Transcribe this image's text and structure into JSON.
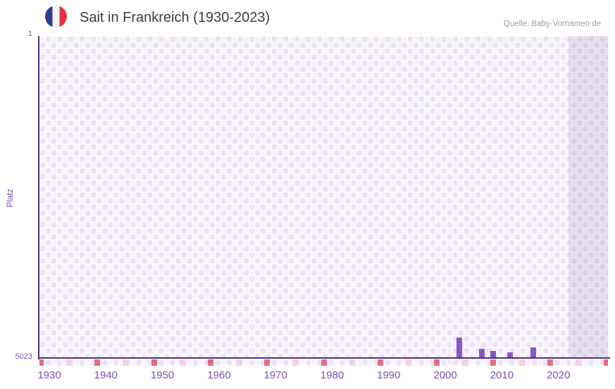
{
  "header": {
    "title": "Sait in Frankreich (1930-2023)",
    "source": "Quelle: Baby-Vornamen.de",
    "flag_icon": "french-flag-icon"
  },
  "y_axis": {
    "label": "Platz",
    "top_tick": "1",
    "bottom_tick": "5023"
  },
  "chart_data": {
    "type": "bar",
    "title": "Sait in Frankreich (1930-2023)",
    "ylabel": "Platz",
    "xlabel": "",
    "y_rank_min": 1,
    "y_rank_max": 5023,
    "y_inverted": true,
    "grid": "checkered",
    "xlim": [
      1929.75,
      2030.25
    ],
    "x_tick_years": [
      1930,
      1940,
      1950,
      1960,
      1970,
      1980,
      1990,
      2000,
      2010,
      2020
    ],
    "decade_marker_years": [
      1930,
      1940,
      1950,
      1960,
      1970,
      1980,
      1990,
      2000,
      2010,
      2020,
      2030
    ],
    "half_decade_marker_years": [
      1935,
      1945,
      1955,
      1965,
      1975,
      1985,
      1995,
      2005,
      2015,
      2025
    ],
    "no_data_shade_from_year": 2023.25,
    "series": [
      {
        "name": "Platz",
        "points": [
          {
            "year": 2004,
            "rank": 4705
          },
          {
            "year": 2008,
            "rank": 4880
          },
          {
            "year": 2010,
            "rank": 4910
          },
          {
            "year": 2013,
            "rank": 4940
          },
          {
            "year": 2017,
            "rank": 4860
          }
        ]
      }
    ]
  },
  "colors": {
    "bar": "#8a57c5",
    "axis_line": "#4e2c85",
    "tick_label": "#7a50af",
    "grid_light": "#f7f3fc",
    "grid_dark": "#ebe3f5",
    "decade_marker": "#e26e7b",
    "half_decade_marker": "#f3d1dc",
    "title_text": "#3d3d3d",
    "source_text": "#9e9e9e",
    "flag_blue": "#2c3f94",
    "flag_red": "#e23344"
  }
}
